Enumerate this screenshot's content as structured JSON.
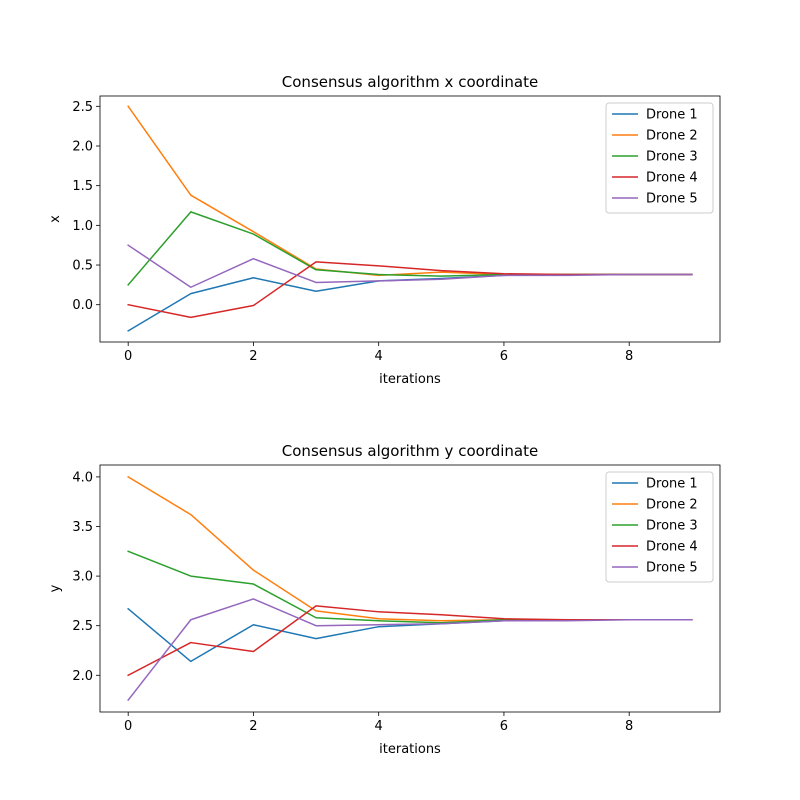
{
  "chart_data": [
    {
      "type": "line",
      "title": "Consensus algorithm x coordinate",
      "xlabel": "iterations",
      "ylabel": "x",
      "xlim": [
        -0.45,
        9.45
      ],
      "ylim": [
        -0.47,
        2.63
      ],
      "xticks": [
        0,
        2,
        4,
        6,
        8
      ],
      "yticks": [
        0.0,
        0.5,
        1.0,
        1.5,
        2.0,
        2.5
      ],
      "ytick_labels": [
        "0.0",
        "0.5",
        "1.0",
        "1.5",
        "2.0",
        "2.5"
      ],
      "grid": false,
      "legend": "top-right",
      "x": [
        0,
        1,
        2,
        3,
        4,
        5,
        6,
        7,
        8,
        9
      ],
      "series": [
        {
          "name": "Drone 1",
          "color": "#1f77b4",
          "values": [
            -0.33,
            0.14,
            0.34,
            0.17,
            0.3,
            0.33,
            0.37,
            0.38,
            0.38,
            0.38
          ]
        },
        {
          "name": "Drone 2",
          "color": "#ff7f0e",
          "values": [
            2.5,
            1.38,
            0.92,
            0.45,
            0.37,
            0.41,
            0.38,
            0.38,
            0.38,
            0.38
          ]
        },
        {
          "name": "Drone 3",
          "color": "#2ca02c",
          "values": [
            0.25,
            1.17,
            0.89,
            0.44,
            0.38,
            0.36,
            0.38,
            0.38,
            0.38,
            0.38
          ]
        },
        {
          "name": "Drone 4",
          "color": "#d62728",
          "values": [
            0.0,
            -0.16,
            -0.01,
            0.54,
            0.49,
            0.43,
            0.39,
            0.38,
            0.38,
            0.38
          ]
        },
        {
          "name": "Drone 5",
          "color": "#9467bd",
          "values": [
            0.75,
            0.22,
            0.58,
            0.28,
            0.3,
            0.32,
            0.37,
            0.37,
            0.38,
            0.38
          ]
        }
      ]
    },
    {
      "type": "line",
      "title": "Consensus algorithm y coordinate",
      "xlabel": "iterations",
      "ylabel": "y",
      "xlim": [
        -0.45,
        9.45
      ],
      "ylim": [
        1.63,
        4.12
      ],
      "xticks": [
        0,
        2,
        4,
        6,
        8
      ],
      "yticks": [
        2.0,
        2.5,
        3.0,
        3.5,
        4.0
      ],
      "ytick_labels": [
        "2.0",
        "2.5",
        "3.0",
        "3.5",
        "4.0"
      ],
      "grid": false,
      "legend": "top-right",
      "x": [
        0,
        1,
        2,
        3,
        4,
        5,
        6,
        7,
        8,
        9
      ],
      "series": [
        {
          "name": "Drone 1",
          "color": "#1f77b4",
          "values": [
            2.67,
            2.14,
            2.51,
            2.37,
            2.49,
            2.52,
            2.55,
            2.56,
            2.56,
            2.56
          ]
        },
        {
          "name": "Drone 2",
          "color": "#ff7f0e",
          "values": [
            4.0,
            3.62,
            3.06,
            2.65,
            2.57,
            2.55,
            2.56,
            2.56,
            2.56,
            2.56
          ]
        },
        {
          "name": "Drone 3",
          "color": "#2ca02c",
          "values": [
            3.25,
            3.0,
            2.92,
            2.58,
            2.55,
            2.53,
            2.56,
            2.56,
            2.56,
            2.56
          ]
        },
        {
          "name": "Drone 4",
          "color": "#d62728",
          "values": [
            2.0,
            2.33,
            2.24,
            2.7,
            2.64,
            2.61,
            2.57,
            2.56,
            2.56,
            2.56
          ]
        },
        {
          "name": "Drone 5",
          "color": "#9467bd",
          "values": [
            1.75,
            2.56,
            2.77,
            2.5,
            2.51,
            2.52,
            2.55,
            2.55,
            2.56,
            2.56
          ]
        }
      ]
    }
  ]
}
